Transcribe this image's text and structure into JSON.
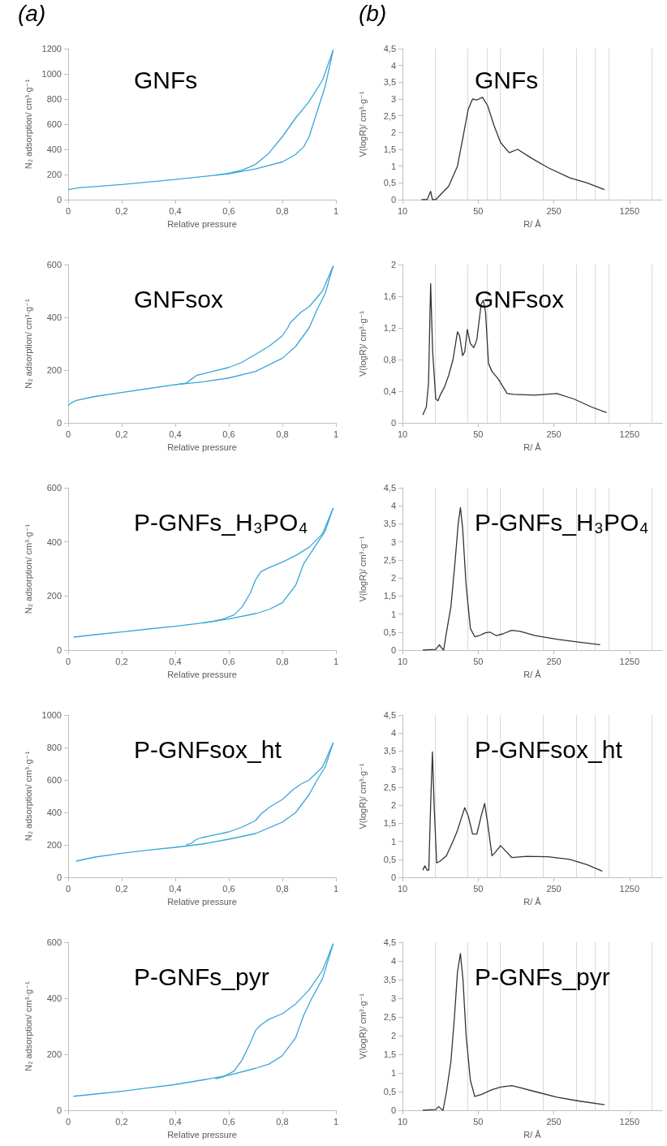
{
  "chart_data": [
    {
      "type": "line",
      "title": "GNFs",
      "annotations": [
        "(a)"
      ],
      "xlabel": "Relative pressure",
      "ylabel": "N₂ adsorption/ cm³·g⁻¹",
      "xlim": [
        0,
        1
      ],
      "xticks": [
        0,
        {
          "value": 0.2,
          "label": "0,2"
        },
        {
          "value": 0.4,
          "label": "0,4"
        },
        {
          "value": 0.6,
          "label": "0,6"
        },
        {
          "value": 0.8,
          "label": "0,8"
        },
        1
      ],
      "ylim": [
        0,
        1200
      ],
      "yticks": [
        0,
        200,
        400,
        600,
        800,
        1000,
        1200
      ],
      "series": [
        {
          "color": "#3aa6d8",
          "x": [
            0,
            0.02,
            0.04,
            0.2,
            0.4,
            0.6,
            0.7,
            0.8,
            0.85,
            0.88,
            0.9,
            0.93,
            0.96,
            0.99
          ],
          "values": [
            80,
            88,
            95,
            120,
            160,
            205,
            245,
            300,
            360,
            420,
            500,
            700,
            900,
            1190
          ]
        },
        {
          "color": "#3aa6d8",
          "x": [
            0.99,
            0.95,
            0.9,
            0.85,
            0.8,
            0.75,
            0.7,
            0.65,
            0.6,
            0.55
          ],
          "values": [
            1190,
            950,
            780,
            650,
            500,
            370,
            280,
            235,
            210,
            195
          ]
        }
      ]
    },
    {
      "type": "line",
      "title": "GNFs",
      "annotations": [
        "(b)"
      ],
      "xlabel": "R/ Å",
      "ylabel": "V(logR)/ cm³·g⁻¹",
      "log": "x",
      "xlim": [
        10,
        2500
      ],
      "xticks": [
        10,
        50,
        250,
        1250
      ],
      "ylim": [
        0,
        4.5
      ],
      "yticks": [
        0,
        {
          "value": 0.5,
          "label": "0,5"
        },
        1,
        {
          "value": 1.5,
          "label": "1,5"
        },
        2,
        {
          "value": 2.5,
          "label": "2,5"
        },
        3,
        {
          "value": 3.5,
          "label": "3,5"
        },
        4,
        {
          "value": 4.5,
          "label": "4,5"
        }
      ],
      "ref_lines": [
        {
          "axis": "x",
          "value": 20,
          "color": "#d9d9d9"
        },
        {
          "axis": "x",
          "value": 40,
          "color": "#d9d9d9"
        },
        {
          "axis": "x",
          "value": 60,
          "color": "#d9d9d9"
        },
        {
          "axis": "x",
          "value": 80,
          "color": "#d9d9d9"
        },
        {
          "axis": "x",
          "value": 200,
          "color": "#d9d9d9"
        },
        {
          "axis": "x",
          "value": 400,
          "color": "#d9d9d9"
        },
        {
          "axis": "x",
          "value": 600,
          "color": "#d9d9d9"
        },
        {
          "axis": "x",
          "value": 800,
          "color": "#d9d9d9"
        },
        {
          "axis": "x",
          "value": 2000,
          "color": "#d9d9d9"
        }
      ],
      "series": [
        {
          "color": "#333333",
          "x": [
            15,
            16.9,
            18.2,
            18.9,
            20.3,
            23.3,
            26.7,
            32.2,
            36.9,
            40.5,
            44.4,
            48.6,
            54.8,
            61.2,
            70.2,
            80.6,
            96.9,
            116,
            153,
            222,
            351,
            507,
            733
          ],
          "values": [
            0,
            0,
            0.25,
            0,
            0,
            0.2,
            0.4,
            1.0,
            2.0,
            2.7,
            3.0,
            2.97,
            3.05,
            2.8,
            2.2,
            1.7,
            1.4,
            1.5,
            1.25,
            0.95,
            0.65,
            0.5,
            0.3
          ]
        }
      ]
    },
    {
      "type": "line",
      "title": "GNFsox",
      "xlabel": "Relative pressure",
      "ylabel": "N₂ adsorption/ cm³·g⁻¹",
      "xlim": [
        0,
        1
      ],
      "xticks": [
        0,
        {
          "value": 0.2,
          "label": "0,2"
        },
        {
          "value": 0.4,
          "label": "0,4"
        },
        {
          "value": 0.6,
          "label": "0,6"
        },
        {
          "value": 0.8,
          "label": "0,8"
        },
        1
      ],
      "ylim": [
        0,
        600
      ],
      "yticks": [
        0,
        200,
        400,
        600
      ],
      "series": [
        {
          "color": "#3aa6d8",
          "x": [
            0,
            0.01,
            0.03,
            0.1,
            0.2,
            0.3,
            0.4,
            0.5,
            0.6,
            0.7,
            0.8,
            0.85,
            0.9,
            0.93,
            0.96,
            0.99
          ],
          "values": [
            65,
            75,
            85,
            100,
            115,
            130,
            145,
            155,
            170,
            195,
            245,
            290,
            360,
            430,
            490,
            595
          ]
        },
        {
          "color": "#3aa6d8",
          "x": [
            0.99,
            0.95,
            0.9,
            0.87,
            0.83,
            0.82,
            0.8,
            0.75,
            0.7,
            0.65,
            0.6,
            0.5,
            0.48,
            0.46,
            0.44,
            0.4
          ],
          "values": [
            595,
            500,
            440,
            420,
            380,
            360,
            330,
            290,
            260,
            230,
            210,
            185,
            180,
            165,
            150,
            145
          ]
        }
      ]
    },
    {
      "type": "line",
      "title": "GNFsox",
      "xlabel": "R/ Å",
      "ylabel": "V(logR)/ cm³·g⁻¹",
      "log": "x",
      "xlim": [
        10,
        2500
      ],
      "xticks": [
        10,
        50,
        250,
        1250
      ],
      "ylim": [
        0,
        2
      ],
      "yticks": [
        0,
        {
          "value": 0.4,
          "label": "0,4"
        },
        {
          "value": 0.8,
          "label": "0,8"
        },
        {
          "value": 1.2,
          "label": "1,2"
        },
        {
          "value": 1.6,
          "label": "1,6"
        },
        2
      ],
      "ref_lines": [
        {
          "axis": "x",
          "value": 20,
          "color": "#d9d9d9"
        },
        {
          "axis": "x",
          "value": 40,
          "color": "#d9d9d9"
        },
        {
          "axis": "x",
          "value": 60,
          "color": "#d9d9d9"
        },
        {
          "axis": "x",
          "value": 80,
          "color": "#d9d9d9"
        },
        {
          "axis": "x",
          "value": 200,
          "color": "#d9d9d9"
        },
        {
          "axis": "x",
          "value": 400,
          "color": "#d9d9d9"
        },
        {
          "axis": "x",
          "value": 600,
          "color": "#d9d9d9"
        },
        {
          "axis": "x",
          "value": 800,
          "color": "#d9d9d9"
        },
        {
          "axis": "x",
          "value": 2000,
          "color": "#d9d9d9"
        }
      ],
      "series": [
        {
          "color": "#333333",
          "x": [
            15.4,
            16.6,
            17.4,
            18.2,
            19,
            20.3,
            21.3,
            22.3,
            24.4,
            26.7,
            29.3,
            32.2,
            33.7,
            35.9,
            37.6,
            39.7,
            42.4,
            45.6,
            48.6,
            53.3,
            55.8,
            58.5,
            62.3,
            67.1,
            77.1,
            92.6,
            106,
            168,
            267,
            385,
            557,
            767
          ],
          "values": [
            0.1,
            0.2,
            0.5,
            1.76,
            0.9,
            0.3,
            0.28,
            0.35,
            0.45,
            0.6,
            0.8,
            1.15,
            1.1,
            0.85,
            0.9,
            1.18,
            1.0,
            0.95,
            1.05,
            1.5,
            1.55,
            1.4,
            0.75,
            0.65,
            0.55,
            0.37,
            0.36,
            0.35,
            0.37,
            0.3,
            0.2,
            0.13
          ]
        }
      ]
    },
    {
      "type": "line",
      "title": "P-GNFs_H₃PO₄",
      "xlabel": "Relative pressure",
      "ylabel": "N₂ adsorption/ cm³·g⁻¹",
      "xlim": [
        0,
        1
      ],
      "xticks": [
        0,
        {
          "value": 0.2,
          "label": "0,2"
        },
        {
          "value": 0.4,
          "label": "0,4"
        },
        {
          "value": 0.6,
          "label": "0,6"
        },
        {
          "value": 0.8,
          "label": "0,8"
        },
        1
      ],
      "ylim": [
        0,
        600
      ],
      "yticks": [
        0,
        200,
        400,
        600
      ],
      "series": [
        {
          "color": "#3aa6d8",
          "x": [
            0.02,
            0.1,
            0.2,
            0.3,
            0.4,
            0.5,
            0.6,
            0.7,
            0.75,
            0.8,
            0.85,
            0.88,
            0.92,
            0.96,
            0.99
          ],
          "values": [
            48,
            57,
            67,
            78,
            88,
            100,
            115,
            135,
            150,
            175,
            240,
            320,
            380,
            440,
            525
          ]
        },
        {
          "color": "#3aa6d8",
          "x": [
            0.99,
            0.95,
            0.9,
            0.85,
            0.8,
            0.75,
            0.72,
            0.7,
            0.68,
            0.65,
            0.62,
            0.58,
            0.55,
            0.5
          ],
          "values": [
            525,
            430,
            380,
            350,
            325,
            305,
            290,
            260,
            210,
            160,
            130,
            115,
            108,
            100
          ]
        }
      ]
    },
    {
      "type": "line",
      "title": "P-GNFs_H₃PO₄",
      "xlabel": "R/ Å",
      "ylabel": "V(logR)/ cm³·g⁻¹",
      "log": "x",
      "xlim": [
        10,
        2500
      ],
      "xticks": [
        10,
        50,
        250,
        1250
      ],
      "ylim": [
        0,
        4.5
      ],
      "yticks": [
        0,
        {
          "value": 0.5,
          "label": "0,5"
        },
        1,
        {
          "value": 1.5,
          "label": "1,5"
        },
        2,
        {
          "value": 2.5,
          "label": "2,5"
        },
        3,
        {
          "value": 3.5,
          "label": "3,5"
        },
        4,
        {
          "value": 4.5,
          "label": "4,5"
        }
      ],
      "ref_lines": [
        {
          "axis": "x",
          "value": 20,
          "color": "#d9d9d9"
        },
        {
          "axis": "x",
          "value": 40,
          "color": "#d9d9d9"
        },
        {
          "axis": "x",
          "value": 60,
          "color": "#d9d9d9"
        },
        {
          "axis": "x",
          "value": 80,
          "color": "#d9d9d9"
        },
        {
          "axis": "x",
          "value": 200,
          "color": "#d9d9d9"
        },
        {
          "axis": "x",
          "value": 400,
          "color": "#d9d9d9"
        },
        {
          "axis": "x",
          "value": 600,
          "color": "#d9d9d9"
        },
        {
          "axis": "x",
          "value": 800,
          "color": "#d9d9d9"
        },
        {
          "axis": "x",
          "value": 2000,
          "color": "#d9d9d9"
        }
      ],
      "series": [
        {
          "color": "#333333",
          "x": [
            15.4,
            20.3,
            21.9,
            23.1,
            24,
            25.5,
            28,
            30.7,
            32.7,
            34.3,
            35.9,
            38.7,
            42.4,
            46.5,
            50.9,
            58.5,
            64.1,
            73.6,
            84.5,
            102,
            122,
            168,
            267,
            422,
            669
          ],
          "values": [
            0,
            0.02,
            0.15,
            0.05,
            0,
            0.5,
            1.2,
            2.5,
            3.5,
            3.95,
            3.4,
            1.8,
            0.6,
            0.37,
            0.4,
            0.48,
            0.5,
            0.4,
            0.45,
            0.55,
            0.52,
            0.4,
            0.3,
            0.22,
            0.15
          ]
        }
      ]
    },
    {
      "type": "line",
      "title": "P-GNFsox_ht",
      "xlabel": "Relative pressure",
      "ylabel": "N₂ adsorption/ cm³·g⁻¹",
      "xlim": [
        0,
        1
      ],
      "xticks": [
        0,
        {
          "value": 0.2,
          "label": "0,2"
        },
        {
          "value": 0.4,
          "label": "0,4"
        },
        {
          "value": 0.6,
          "label": "0,6"
        },
        {
          "value": 0.8,
          "label": "0,8"
        },
        1
      ],
      "ylim": [
        0,
        1000
      ],
      "yticks": [
        0,
        200,
        400,
        600,
        800,
        1000
      ],
      "series": [
        {
          "color": "#3aa6d8",
          "x": [
            0.03,
            0.1,
            0.2,
            0.3,
            0.4,
            0.5,
            0.6,
            0.7,
            0.8,
            0.85,
            0.9,
            0.93,
            0.96,
            0.99
          ],
          "values": [
            100,
            125,
            148,
            168,
            185,
            205,
            235,
            270,
            340,
            400,
            510,
            600,
            680,
            830
          ]
        },
        {
          "color": "#3aa6d8",
          "x": [
            0.99,
            0.95,
            0.9,
            0.87,
            0.84,
            0.83,
            0.8,
            0.75,
            0.72,
            0.7,
            0.65,
            0.6,
            0.5,
            0.48,
            0.46,
            0.44
          ],
          "values": [
            830,
            680,
            600,
            575,
            540,
            525,
            480,
            430,
            390,
            350,
            310,
            280,
            245,
            235,
            210,
            200
          ]
        }
      ]
    },
    {
      "type": "line",
      "title": "P-GNFsox_ht",
      "xlabel": "R/ Å",
      "ylabel": "V(logR)/ cm³·g⁻¹",
      "log": "x",
      "xlim": [
        10,
        2500
      ],
      "xticks": [
        10,
        50,
        250,
        1250
      ],
      "ylim": [
        0,
        4.5
      ],
      "yticks": [
        0,
        {
          "value": 0.5,
          "label": "0,5"
        },
        1,
        {
          "value": 1.5,
          "label": "1,5"
        },
        2,
        {
          "value": 2.5,
          "label": "2,5"
        },
        3,
        {
          "value": 3.5,
          "label": "3,5"
        },
        4,
        {
          "value": 4.5,
          "label": "4,5"
        }
      ],
      "ref_lines": [
        {
          "axis": "x",
          "value": 20,
          "color": "#d9d9d9"
        },
        {
          "axis": "x",
          "value": 40,
          "color": "#d9d9d9"
        },
        {
          "axis": "x",
          "value": 60,
          "color": "#d9d9d9"
        },
        {
          "axis": "x",
          "value": 80,
          "color": "#d9d9d9"
        },
        {
          "axis": "x",
          "value": 200,
          "color": "#d9d9d9"
        },
        {
          "axis": "x",
          "value": 400,
          "color": "#d9d9d9"
        },
        {
          "axis": "x",
          "value": 600,
          "color": "#d9d9d9"
        },
        {
          "axis": "x",
          "value": 800,
          "color": "#d9d9d9"
        },
        {
          "axis": "x",
          "value": 2000,
          "color": "#d9d9d9"
        }
      ],
      "series": [
        {
          "color": "#333333",
          "x": [
            15.4,
            16.1,
            16.9,
            17.5,
            18.2,
            18.9,
            19.6,
            20.7,
            22.3,
            25.5,
            29.3,
            32.2,
            34.6,
            37.6,
            40.5,
            44.4,
            48.6,
            53.3,
            57.4,
            61.2,
            67.1,
            72.3,
            80.6,
            88.4,
            102,
            140,
            222,
            351,
            507,
            700
          ],
          "values": [
            0.2,
            0.32,
            0.2,
            0.2,
            2.0,
            3.48,
            2.0,
            0.4,
            0.45,
            0.6,
            1.0,
            1.3,
            1.6,
            1.93,
            1.7,
            1.2,
            1.2,
            1.7,
            2.05,
            1.5,
            0.6,
            0.7,
            0.88,
            0.75,
            0.55,
            0.58,
            0.57,
            0.5,
            0.35,
            0.17
          ]
        }
      ]
    },
    {
      "type": "line",
      "title": "P-GNFs_pyr",
      "xlabel": "Relative pressure",
      "ylabel": "N₂ adsorption/ cm³·g⁻¹",
      "xlim": [
        0,
        1
      ],
      "xticks": [
        0,
        {
          "value": 0.2,
          "label": "0,2"
        },
        {
          "value": 0.4,
          "label": "0,4"
        },
        {
          "value": 0.6,
          "label": "0,6"
        },
        {
          "value": 0.8,
          "label": "0,8"
        },
        1
      ],
      "ylim": [
        0,
        600
      ],
      "yticks": [
        0,
        200,
        400,
        600
      ],
      "series": [
        {
          "color": "#3aa6d8",
          "x": [
            0.02,
            0.1,
            0.2,
            0.3,
            0.4,
            0.5,
            0.6,
            0.7,
            0.75,
            0.8,
            0.85,
            0.88,
            0.91,
            0.95,
            0.99
          ],
          "values": [
            50,
            58,
            68,
            80,
            92,
            108,
            125,
            150,
            165,
            195,
            260,
            340,
            400,
            470,
            595
          ]
        },
        {
          "color": "#3aa6d8",
          "x": [
            0.99,
            0.95,
            0.9,
            0.85,
            0.8,
            0.75,
            0.72,
            0.7,
            0.68,
            0.65,
            0.62,
            0.58,
            0.55
          ],
          "values": [
            595,
            500,
            430,
            380,
            345,
            325,
            305,
            285,
            240,
            180,
            140,
            120,
            112
          ]
        }
      ]
    },
    {
      "type": "line",
      "title": "P-GNFs_pyr",
      "xlabel": "R/ Å",
      "ylabel": "V(logR)/ cm³·g⁻¹",
      "log": "x",
      "xlim": [
        10,
        2500
      ],
      "xticks": [
        10,
        50,
        250,
        1250
      ],
      "ylim": [
        0,
        4.5
      ],
      "yticks": [
        0,
        {
          "value": 0.5,
          "label": "0,5"
        },
        1,
        {
          "value": 1.5,
          "label": "1,5"
        },
        2,
        {
          "value": 2.5,
          "label": "2,5"
        },
        3,
        {
          "value": 3.5,
          "label": "3,5"
        },
        4,
        {
          "value": 4.5,
          "label": "4,5"
        }
      ],
      "ref_lines": [
        {
          "axis": "x",
          "value": 20,
          "color": "#d9d9d9"
        },
        {
          "axis": "x",
          "value": 40,
          "color": "#d9d9d9"
        },
        {
          "axis": "x",
          "value": 60,
          "color": "#d9d9d9"
        },
        {
          "axis": "x",
          "value": 80,
          "color": "#d9d9d9"
        },
        {
          "axis": "x",
          "value": 200,
          "color": "#d9d9d9"
        },
        {
          "axis": "x",
          "value": 400,
          "color": "#d9d9d9"
        },
        {
          "axis": "x",
          "value": 600,
          "color": "#d9d9d9"
        },
        {
          "axis": "x",
          "value": 800,
          "color": "#d9d9d9"
        },
        {
          "axis": "x",
          "value": 2000,
          "color": "#d9d9d9"
        }
      ],
      "series": [
        {
          "color": "#333333",
          "x": [
            15.4,
            20.3,
            21.6,
            22.9,
            23.7,
            25.5,
            28,
            30.2,
            32.2,
            34.3,
            36.2,
            38.7,
            42.4,
            46.5,
            53.3,
            67.1,
            80.6,
            102,
            116,
            168,
            267,
            422,
            733
          ],
          "values": [
            0,
            0.02,
            0.1,
            0.03,
            0,
            0.5,
            1.3,
            2.5,
            3.7,
            4.2,
            3.5,
            2.0,
            0.8,
            0.37,
            0.42,
            0.55,
            0.62,
            0.66,
            0.62,
            0.5,
            0.35,
            0.25,
            0.15
          ]
        }
      ]
    }
  ]
}
